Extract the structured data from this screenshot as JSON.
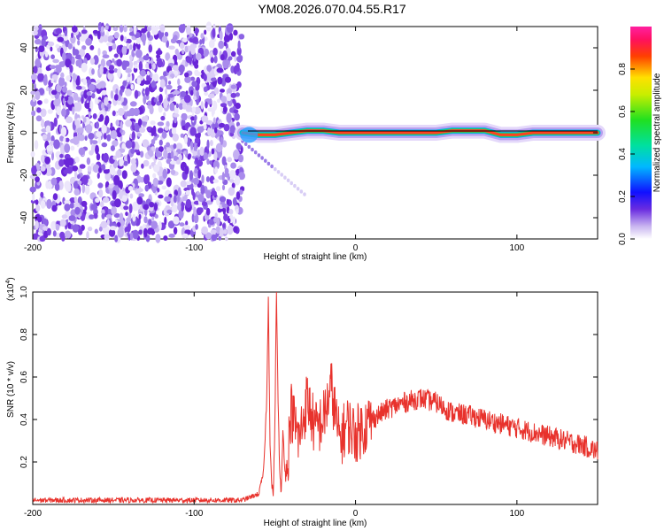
{
  "title": "YM08.2026.070.04.55.R17",
  "chart_data": [
    {
      "type": "heatmap",
      "xlabel": "Height of straight line (km)",
      "ylabel": "Frequency (Hz)",
      "xlim": [
        -200,
        150
      ],
      "ylim": [
        -50,
        50
      ],
      "xticks": [
        -200,
        -100,
        0,
        100
      ],
      "yticks": [
        -40,
        -20,
        0,
        20,
        40
      ],
      "noise_region_x": [
        -200,
        -70
      ],
      "ridge": {
        "x": [
          -70,
          -60,
          -50,
          -40,
          -30,
          -20,
          -10,
          0,
          10,
          20,
          30,
          40,
          50,
          60,
          70,
          80,
          90,
          100,
          110,
          120,
          130,
          140,
          150
        ],
        "y": [
          0,
          -1,
          -1,
          0,
          1,
          1,
          0,
          0,
          0,
          0,
          0,
          0,
          0,
          1,
          1,
          1,
          -1,
          -1,
          0,
          0,
          0,
          0,
          0
        ]
      },
      "colorbar": {
        "label": "Normalized spectral amplitude",
        "range": [
          0,
          1
        ],
        "ticks": [
          "0.0",
          "0.2",
          "0.4",
          "0.6",
          "0.8"
        ]
      }
    },
    {
      "type": "line",
      "xlabel": "Height of straight line (km)",
      "ylabel": "SNR (10 * v/v)",
      "scale_label": "(x10",
      "scale_exp": "4",
      "scale_close": ")",
      "xlim": [
        -200,
        150
      ],
      "ylim": [
        0,
        1.0
      ],
      "xticks": [
        -200,
        -100,
        0,
        100
      ],
      "yticks": [
        "0.2",
        "0.4",
        "0.6",
        "0.8",
        "1.0"
      ],
      "color": "#e8322c",
      "x": [
        -200,
        -150,
        -100,
        -70,
        -60,
        -57,
        -55,
        -54,
        -53,
        -52,
        -51,
        -50,
        -49,
        -48,
        -47,
        -46,
        -45,
        -44,
        -43,
        -40,
        -35,
        -30,
        -25,
        -20,
        -15,
        -10,
        -5,
        0,
        10,
        20,
        30,
        40,
        50,
        60,
        70,
        80,
        90,
        100,
        110,
        120,
        130,
        140,
        150
      ],
      "values": [
        0.02,
        0.02,
        0.02,
        0.02,
        0.05,
        0.15,
        0.5,
        0.98,
        0.3,
        0.1,
        0.05,
        0.35,
        1.0,
        0.5,
        0.15,
        0.05,
        0.35,
        0.2,
        0.1,
        0.45,
        0.3,
        0.5,
        0.35,
        0.4,
        0.55,
        0.3,
        0.38,
        0.33,
        0.4,
        0.45,
        0.48,
        0.5,
        0.48,
        0.43,
        0.42,
        0.4,
        0.38,
        0.36,
        0.34,
        0.32,
        0.3,
        0.28,
        0.25
      ]
    }
  ]
}
